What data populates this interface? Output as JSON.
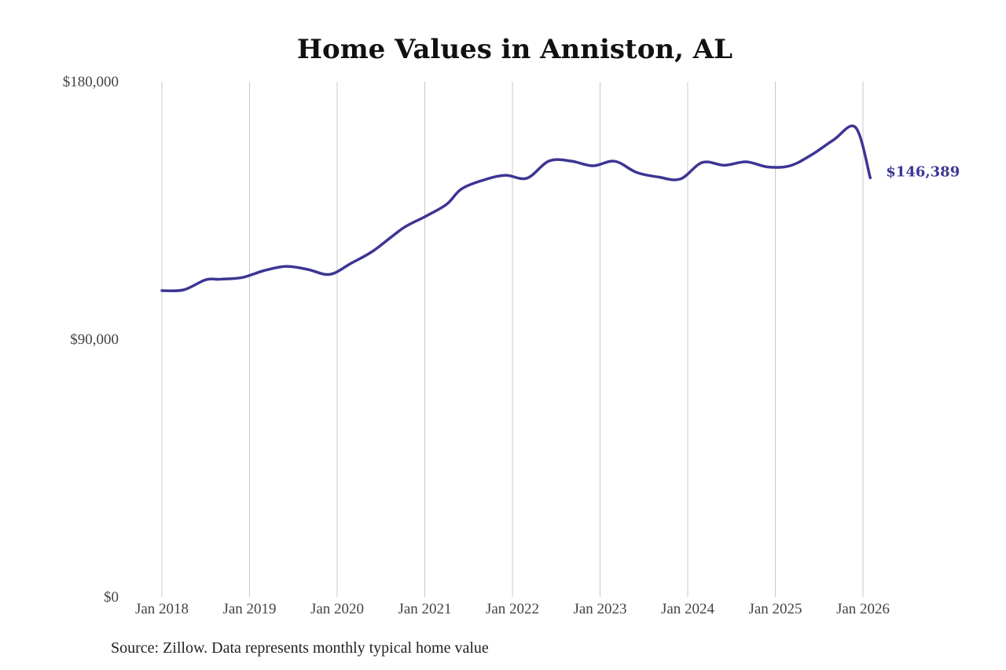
{
  "colors": {
    "line": "#3d3593",
    "grid": "#c8c8c8",
    "title": "#111111",
    "ticks": "#444444",
    "background": "#ffffff"
  },
  "source_note": "Source: Zillow. Data represents monthly typical home value",
  "chart_data": {
    "type": "line",
    "title": "Home Values in Anniston, AL",
    "xlabel": "",
    "ylabel": "",
    "ylim": [
      0,
      180000
    ],
    "y_ticks": [
      0,
      90000,
      180000
    ],
    "y_tick_labels": [
      "$0",
      "$90,000",
      "$180,000"
    ],
    "x_ticks": [
      "2018-01",
      "2019-01",
      "2020-01",
      "2021-01",
      "2022-01",
      "2023-01",
      "2024-01",
      "2025-01",
      "2026-01"
    ],
    "x_tick_labels": [
      "Jan 2018",
      "Jan 2019",
      "Jan 2020",
      "Jan 2021",
      "Jan 2022",
      "Jan 2023",
      "Jan 2024",
      "Jan 2025",
      "Jan 2026"
    ],
    "grid": {
      "vertical": true,
      "horizontal": false
    },
    "end_label": "$146,389",
    "series": [
      {
        "x": [
          "2018-01",
          "2018-04",
          "2018-07",
          "2018-09",
          "2018-12",
          "2019-03",
          "2019-06",
          "2019-09",
          "2019-12",
          "2020-03",
          "2020-06",
          "2020-10",
          "2021-01",
          "2021-04",
          "2021-06",
          "2021-09",
          "2021-12",
          "2022-03",
          "2022-06",
          "2022-09",
          "2022-12",
          "2023-03",
          "2023-06",
          "2023-09",
          "2023-12",
          "2024-03",
          "2024-06",
          "2024-09",
          "2024-12",
          "2025-03",
          "2025-06",
          "2025-09",
          "2025-12",
          "2026-02"
        ],
        "values": [
          107000,
          107300,
          110800,
          111000,
          111600,
          114000,
          115500,
          114400,
          112700,
          116700,
          121000,
          128800,
          132800,
          137200,
          142500,
          145600,
          147300,
          146300,
          152300,
          152300,
          150600,
          152200,
          148300,
          146700,
          146000,
          151800,
          150800,
          152000,
          150200,
          150600,
          154500,
          159700,
          164000,
          146389
        ]
      }
    ]
  }
}
